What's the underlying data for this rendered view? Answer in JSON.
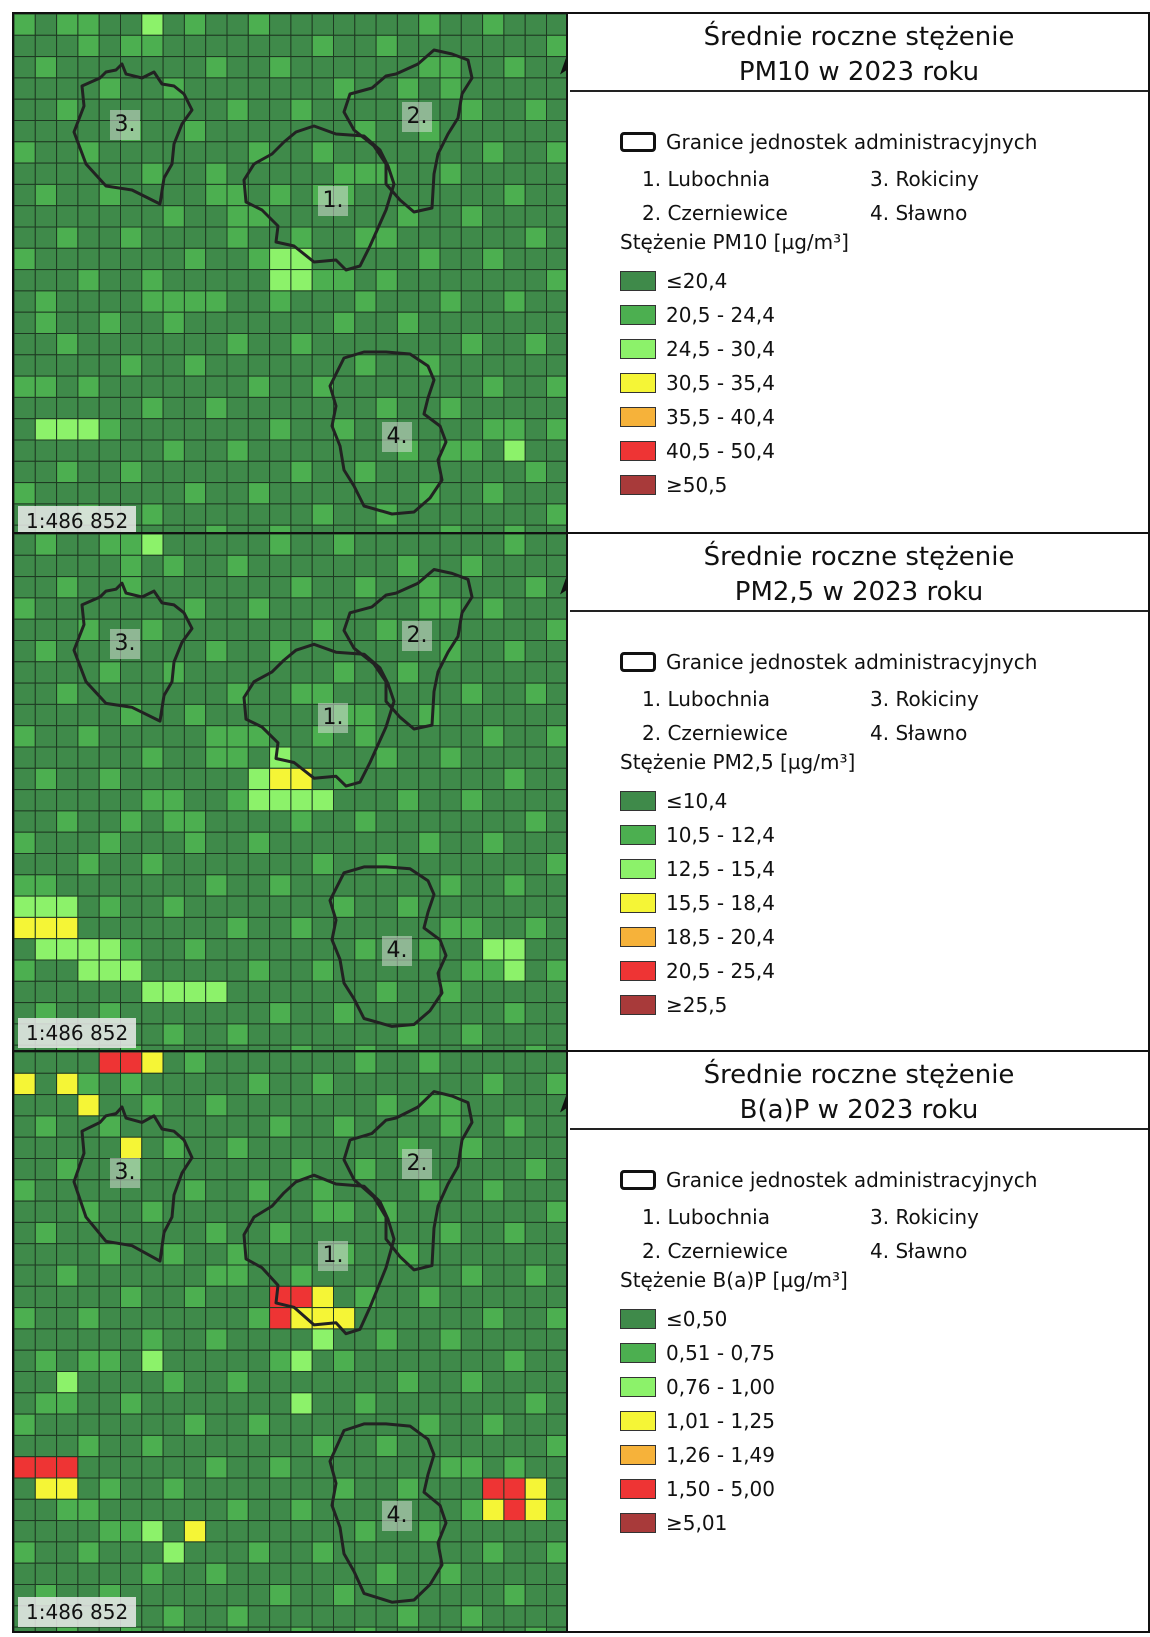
{
  "scale_label": "1:486 852",
  "admin": {
    "boundary_label": "Granice jednostek administracyjnych",
    "units": [
      "1. Lubochnia",
      "2. Czerniewice",
      "3. Rokiciny",
      "4. Sławno"
    ],
    "map_labels": [
      "1.",
      "2.",
      "3.",
      "4."
    ]
  },
  "panels": [
    {
      "title_line1": "Średnie roczne stężenie",
      "title_line2": "PM10 w 2023 roku",
      "concentration_title": "Stężenie PM10 [µg/m³]",
      "classes": [
        "≤20,4",
        "20,5 - 24,4",
        "24,5 - 30,4",
        "30,5 - 35,4",
        "35,5 - 40,4",
        "40,5 - 50,4",
        "≥50,5"
      ]
    },
    {
      "title_line1": "Średnie roczne stężenie",
      "title_line2": "PM2,5 w 2023 roku",
      "concentration_title": "Stężenie PM2,5 [µg/m³]",
      "classes": [
        "≤10,4",
        "10,5 - 12,4",
        "12,5 - 15,4",
        "15,5 - 18,4",
        "18,5 - 20,4",
        "20,5 - 25,4",
        "≥25,5"
      ]
    },
    {
      "title_line1": "Średnie roczne stężenie",
      "title_line2": "B(a)P w 2023 roku",
      "concentration_title": "Stężenie B(a)P [µg/m³]",
      "classes": [
        "≤0,50",
        "0,51 - 0,75",
        "0,76 - 1,00",
        "1,01 - 1,25",
        "1,26 - 1,49",
        "1,50 - 5,00",
        "≥5,01"
      ]
    }
  ],
  "colors": {
    "class_colors": [
      "#3f8a4a",
      "#4caf50",
      "#8cf26a",
      "#f5f536",
      "#f6b23a",
      "#ee3434",
      "#a83a3a"
    ],
    "boundary": "#222222"
  }
}
